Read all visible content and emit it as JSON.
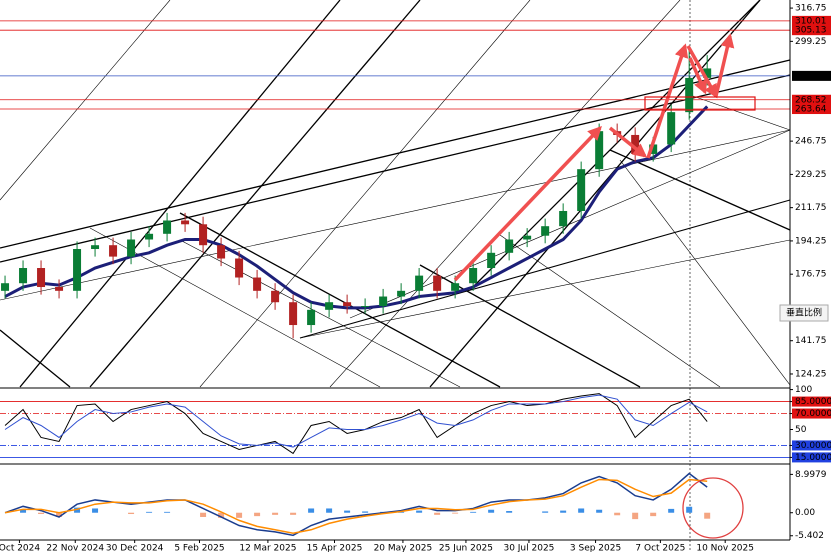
{
  "chart_data": [
    {
      "type": "candlestick",
      "x": [
        0,
        1,
        2,
        3,
        4,
        5,
        6,
        7,
        8,
        9,
        10,
        11,
        12,
        13,
        14,
        15,
        16,
        17,
        18,
        19,
        20,
        21,
        22,
        23,
        24,
        25,
        26,
        27,
        28,
        29,
        30,
        31,
        32,
        33,
        34,
        35,
        36,
        37,
        38,
        39
      ],
      "open": [
        168,
        172,
        180,
        170,
        168,
        190,
        192,
        186,
        195,
        198,
        205,
        203,
        192,
        185,
        175,
        168,
        162,
        150,
        158,
        162,
        160,
        160,
        165,
        168,
        176,
        168,
        172,
        180,
        188,
        195,
        197,
        202,
        210,
        232,
        252,
        250,
        240,
        245,
        262,
        280
      ],
      "high": [
        176,
        184,
        184,
        174,
        194,
        196,
        196,
        199,
        202,
        209,
        209,
        207,
        196,
        189,
        179,
        172,
        166,
        162,
        166,
        166,
        164,
        169,
        172,
        180,
        180,
        176,
        184,
        192,
        199,
        201,
        206,
        214,
        236,
        256,
        256,
        254,
        249,
        266,
        297,
        292
      ],
      "low": [
        164,
        168,
        166,
        164,
        164,
        186,
        182,
        182,
        191,
        194,
        199,
        188,
        181,
        171,
        164,
        158,
        143,
        146,
        154,
        156,
        156,
        156,
        161,
        164,
        164,
        164,
        168,
        176,
        184,
        191,
        193,
        198,
        206,
        228,
        246,
        236,
        236,
        241,
        258,
        276
      ],
      "close": [
        172,
        180,
        170,
        168,
        190,
        192,
        186,
        195,
        198,
        205,
        203,
        192,
        185,
        175,
        168,
        162,
        150,
        158,
        162,
        160,
        160,
        165,
        168,
        176,
        168,
        172,
        180,
        188,
        195,
        197,
        202,
        210,
        232,
        252,
        250,
        240,
        245,
        262,
        280,
        285
      ],
      "up_color": "#0a7d35",
      "down_color": "#b22222",
      "ma": {
        "color": "#1c1f78",
        "values": [
          165,
          170,
          172,
          171,
          175,
          180,
          183,
          186,
          188,
          192,
          195,
          195,
          192,
          187,
          181,
          174,
          167,
          162,
          160,
          159,
          159,
          160,
          162,
          165,
          166,
          167,
          170,
          175,
          180,
          185,
          190,
          195,
          205,
          220,
          232,
          236,
          238,
          245,
          255,
          265
        ]
      },
      "xlim": [
        -0.28,
        43.6
      ],
      "ylim": [
        117.4,
        321
      ],
      "yticks": [
        316.75,
        299.25,
        246.75,
        229.25,
        211.75,
        194.25,
        176.75,
        141.75,
        124.25
      ],
      "levels": [
        {
          "value": 310.01,
          "color": "#e01010"
        },
        {
          "value": 305.13,
          "color": "#e01010"
        },
        {
          "value": 281.08,
          "color": "#000000"
        },
        {
          "value": 268.52,
          "color": "#e01010"
        },
        {
          "value": 263.64,
          "color": "#e01010"
        }
      ],
      "scale_button": "垂直比例"
    },
    {
      "type": "line",
      "x": [
        0,
        1,
        2,
        3,
        4,
        5,
        6,
        7,
        8,
        9,
        10,
        11,
        12,
        13,
        14,
        15,
        16,
        17,
        18,
        19,
        20,
        21,
        22,
        23,
        24,
        25,
        26,
        27,
        28,
        29,
        30,
        31,
        32,
        33,
        34,
        35,
        36,
        37,
        38,
        39
      ],
      "series": [
        {
          "color": "#000000",
          "values": [
            55,
            75,
            40,
            35,
            80,
            82,
            60,
            75,
            80,
            85,
            70,
            45,
            35,
            25,
            30,
            35,
            20,
            55,
            60,
            45,
            50,
            60,
            65,
            75,
            40,
            55,
            70,
            80,
            85,
            80,
            82,
            88,
            92,
            95,
            80,
            40,
            60,
            80,
            88,
            60
          ]
        },
        {
          "color": "#3050d0",
          "values": [
            50,
            65,
            55,
            40,
            60,
            75,
            70,
            72,
            78,
            82,
            78,
            60,
            42,
            32,
            30,
            33,
            28,
            40,
            52,
            50,
            50,
            55,
            62,
            70,
            58,
            55,
            62,
            74,
            82,
            82,
            82,
            85,
            90,
            93,
            88,
            62,
            55,
            70,
            84,
            72
          ]
        }
      ],
      "xlim": [
        -0.28,
        43.6
      ],
      "ylim": [
        8,
        102
      ],
      "yticks": [
        100,
        {
          "value": 85,
          "label": "85.0000"
        },
        {
          "value": 70,
          "label": "70.0000"
        },
        50,
        {
          "value": 30,
          "label": "30.0000"
        },
        {
          "value": 15,
          "label": "15.0000"
        }
      ],
      "levels": [
        {
          "value": 85,
          "color": "#e01010"
        },
        {
          "value": 70,
          "color": "#e01010"
        },
        {
          "value": 30,
          "color": "#2040e0"
        },
        {
          "value": 15,
          "color": "#2040e0"
        }
      ]
    },
    {
      "type": "macd",
      "x": [
        0,
        1,
        2,
        3,
        4,
        5,
        6,
        7,
        8,
        9,
        10,
        11,
        12,
        13,
        14,
        15,
        16,
        17,
        18,
        19,
        20,
        21,
        22,
        23,
        24,
        25,
        26,
        27,
        28,
        29,
        30,
        31,
        32,
        33,
        34,
        35,
        36,
        37,
        38,
        39
      ],
      "histogram": [
        0,
        0.7,
        -0.3,
        -1,
        1.2,
        1,
        0,
        -0.3,
        0.2,
        0.2,
        0,
        -1,
        -1.2,
        -1.2,
        -0.8,
        -0.5,
        -0.5,
        1,
        1,
        0.5,
        0.3,
        0.2,
        0.2,
        0.5,
        -0.5,
        -0.2,
        0.2,
        0.7,
        0.4,
        0,
        0.3,
        0.5,
        1,
        0.7,
        -0.6,
        -1.5,
        -0.8,
        0.9,
        1.4,
        -1.4
      ],
      "pos_color": "#3a8ee6",
      "neg_color": "#f4a582",
      "series": [
        {
          "color": "#1a3d8f",
          "values": [
            0,
            1.5,
            0.5,
            -1,
            2,
            3,
            2.5,
            2,
            2.5,
            3,
            3,
            1,
            -1,
            -3,
            -4,
            -4.5,
            -5.3,
            -3,
            -1.5,
            -1,
            -0.5,
            0,
            0.5,
            1.5,
            0.5,
            0.5,
            1,
            2.5,
            3,
            3,
            3.5,
            4.5,
            7,
            8.5,
            7,
            4,
            3,
            5.5,
            9.2,
            6
          ]
        },
        {
          "color": "#ff8c00",
          "values": [
            0,
            0.8,
            0.8,
            0,
            0.8,
            2,
            2.5,
            2.3,
            2.3,
            2.8,
            3,
            2,
            0.2,
            -1.8,
            -3.2,
            -4,
            -4.8,
            -4,
            -2.5,
            -1.5,
            -0.8,
            -0.2,
            0.3,
            1,
            1,
            0.7,
            0.8,
            1.8,
            2.6,
            3,
            3.2,
            4,
            6,
            7.8,
            7.6,
            5.5,
            3.8,
            4.6,
            7.8,
            7.4
          ]
        }
      ],
      "xlim": [
        -0.28,
        43.6
      ],
      "ylim": [
        -6.4,
        11.2
      ],
      "yticks": [
        8.9979,
        {
          "value": 0,
          "label": "0.00"
        },
        -5.402
      ],
      "xticks": [
        {
          "value": 0.8,
          "label": "Oct 2024"
        },
        {
          "value": 3.9,
          "label": "22 Nov 2024"
        },
        {
          "value": 7.2,
          "label": "30 Dec 2024"
        },
        {
          "value": 10.8,
          "label": "5 Feb 2025"
        },
        {
          "value": 14.6,
          "label": "12 Mar 2025"
        },
        {
          "value": 18.3,
          "label": "15 Apr 2025"
        },
        {
          "value": 22.1,
          "label": "20 May 2025"
        },
        {
          "value": 25.6,
          "label": "25 Jun 2025"
        },
        {
          "value": 29.1,
          "label": "30 Jul 2025"
        },
        {
          "value": 32.8,
          "label": "3 Sep 2025"
        },
        {
          "value": 36.4,
          "label": "7 Oct 2025"
        },
        {
          "value": 40,
          "label": "10 Nov 2025"
        }
      ]
    }
  ]
}
